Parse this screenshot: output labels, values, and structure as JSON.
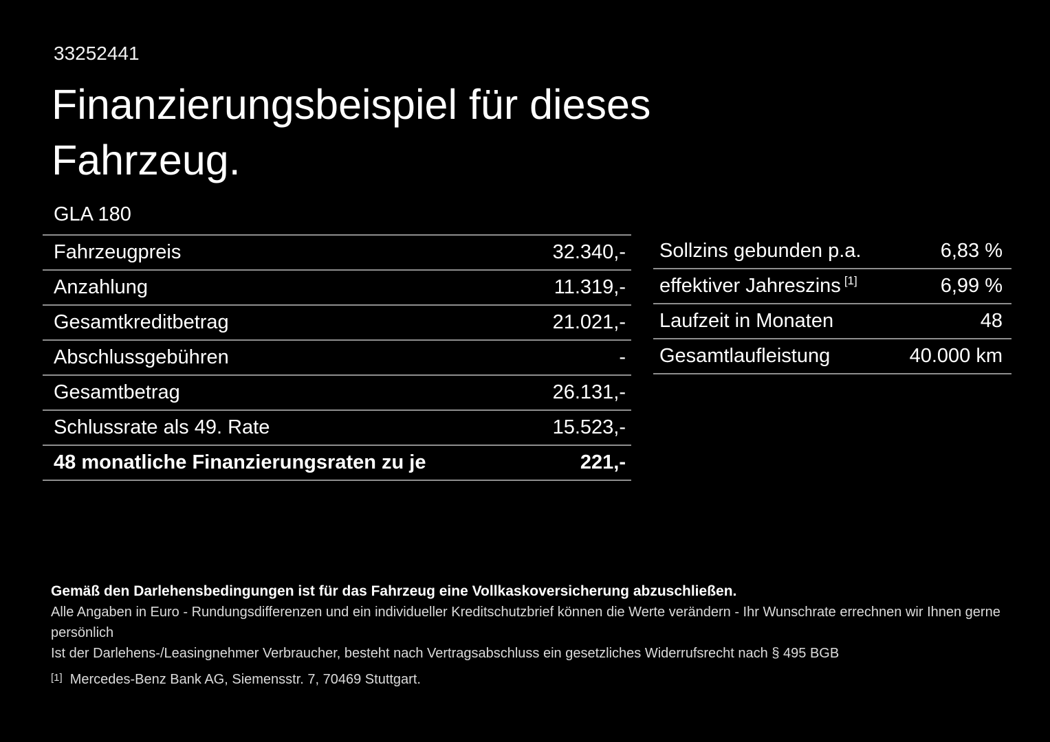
{
  "page": {
    "id_number": "33252441",
    "title": "Finanzierungsbeispiel für dieses Fahrzeug.",
    "model": "GLA 180"
  },
  "finance_table": {
    "rows": [
      {
        "label": "Fahrzeugpreis",
        "value": "32.340,-"
      },
      {
        "label": "Anzahlung",
        "value": "11.319,-"
      },
      {
        "label": "Gesamtkreditbetrag",
        "value": "21.021,-"
      },
      {
        "label": "Abschlussgebühren",
        "value": "-"
      },
      {
        "label": "Gesamtbetrag",
        "value": "26.131,-"
      },
      {
        "label": "Schlussrate als 49. Rate",
        "value": "15.523,-"
      },
      {
        "label": "48 monatliche Finanzierungsraten zu je",
        "value": "221,-"
      }
    ]
  },
  "conditions_table": {
    "rows": [
      {
        "label": "Sollzins gebunden p.a.",
        "sup": "",
        "value": "6,83 %"
      },
      {
        "label": "effektiver Jahreszins",
        "sup": "[1]",
        "value": "6,99 %"
      },
      {
        "label": "Laufzeit in Monaten",
        "sup": "",
        "value": "48"
      },
      {
        "label": "Gesamtlaufleistung",
        "sup": "",
        "value": "40.000 km"
      }
    ]
  },
  "footer": {
    "insurance_note": "Gemäß den Darlehensbedingungen ist für das Fahrzeug eine Vollkaskoversicherung abzuschließen.",
    "note_line_1": "Alle Angaben in Euro - Rundungsdifferenzen und ein individueller Kreditschutzbrief können die Werte verändern - Ihr Wunschrate errechnen wir Ihnen gerne persönlich",
    "note_line_2": "Ist der Darlehens-/Leasingnehmer Verbraucher, besteht nach Vertragsabschluss ein gesetzliches Widerrufsrecht nach § 495 BGB",
    "footnote_marker": "[1]",
    "footnote_text": "Mercedes-Benz Bank AG, Siemensstr. 7, 70469 Stuttgart."
  },
  "colors": {
    "background": "#000000",
    "text": "#ffffff",
    "divider": "#8f8f8f"
  }
}
